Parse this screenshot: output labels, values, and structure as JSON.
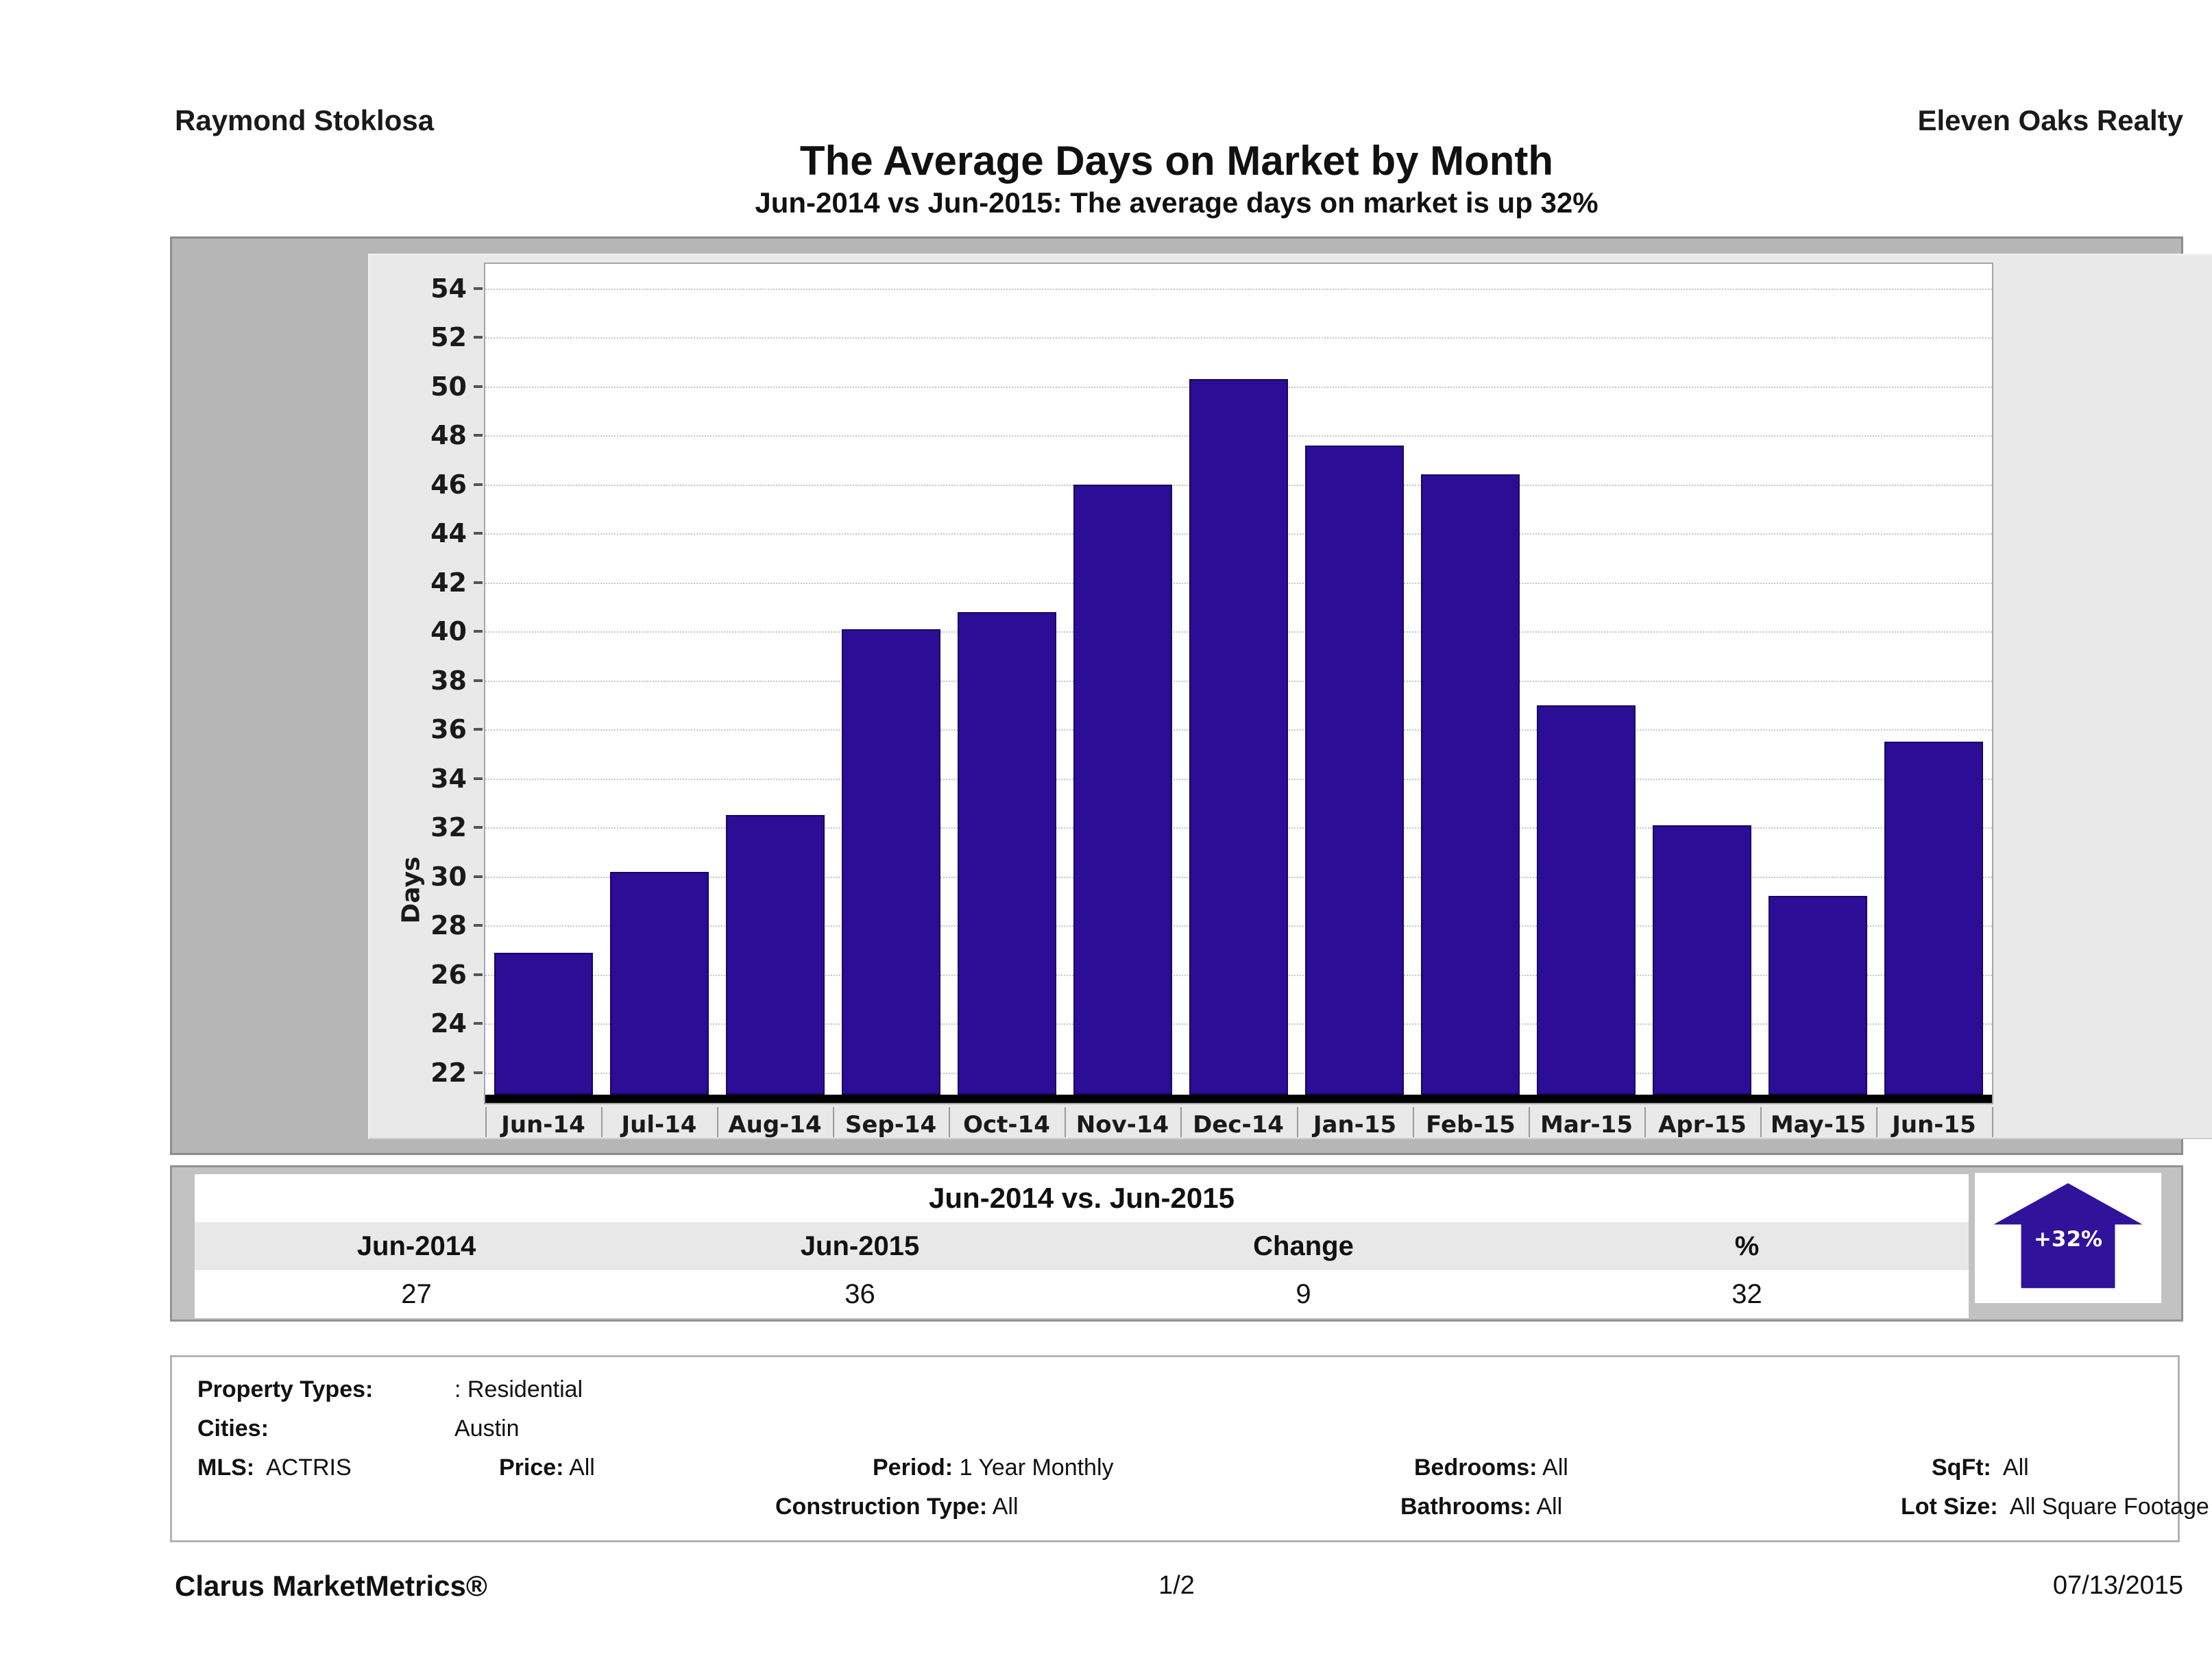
{
  "header": {
    "left": "Raymond Stoklosa",
    "right": "Eleven Oaks Realty"
  },
  "title": "The Average Days on Market by Month",
  "subtitle": "Jun-2014 vs Jun-2015: The average days on market is up 32%",
  "chart_data": {
    "type": "bar",
    "title": "The Average Days on Market by Month",
    "categories": [
      "Jun-14",
      "Jul-14",
      "Aug-14",
      "Sep-14",
      "Oct-14",
      "Nov-14",
      "Dec-14",
      "Jan-15",
      "Feb-15",
      "Mar-15",
      "Apr-15",
      "May-15",
      "Jun-15"
    ],
    "values": [
      26.9,
      30.2,
      32.5,
      40.1,
      40.8,
      46.0,
      50.3,
      47.6,
      46.4,
      37.0,
      32.1,
      29.2,
      35.5
    ],
    "xlabel": "",
    "ylabel": "Days",
    "yticks": [
      22,
      24,
      26,
      28,
      30,
      32,
      34,
      36,
      38,
      40,
      42,
      44,
      46,
      48,
      50,
      52,
      54
    ],
    "ylim": [
      21.1,
      55.0
    ],
    "grid": "horizontal-dotted",
    "legend": "none",
    "bar_color": "#2b0d96"
  },
  "summary_table": {
    "title": "Jun-2014 vs. Jun-2015",
    "columns": [
      "Jun-2014",
      "Jun-2015",
      "Change",
      "%"
    ],
    "values": [
      "27",
      "36",
      "9",
      "32"
    ],
    "badge": "+32%"
  },
  "filters": {
    "property_types_label": "Property Types:",
    "property_types": ": Residential",
    "cities_label": "Cities:",
    "cities": "Austin",
    "mls_label": "MLS:",
    "mls": "ACTRIS",
    "price_label": "Price:",
    "price": "All",
    "period_label": "Period:",
    "period": "1 Year Monthly",
    "construction_label": "Construction Type:",
    "construction": "All",
    "bedrooms_label": "Bedrooms:",
    "bedrooms": "All",
    "bathrooms_label": "Bathrooms:",
    "bathrooms": "All",
    "sqft_label": "SqFt:",
    "sqft": "All",
    "lot_label": "Lot Size:",
    "lot": "All Square Footage"
  },
  "footer": {
    "left": "Clarus MarketMetrics®",
    "center": "1/2",
    "right": "07/13/2015"
  },
  "colors": {
    "bar": "#2b0d96",
    "bar_border": "#190560",
    "arrow": "#30129b",
    "frame_gray": "#b6b6b6",
    "panel_gray": "#e9e9e9",
    "header_row_gray": "#e8e8e8"
  }
}
